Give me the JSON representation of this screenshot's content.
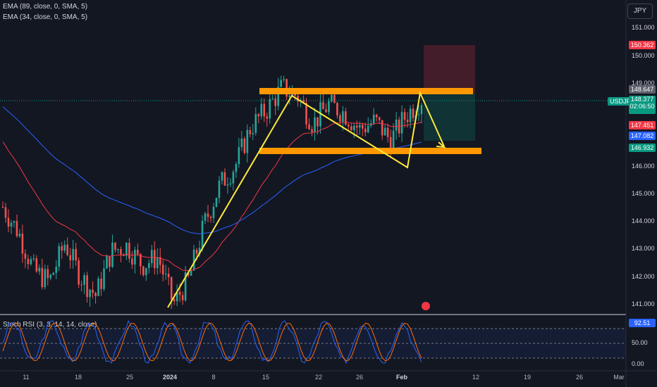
{
  "currency_button": "JPY",
  "indicators": {
    "ema1": "EMA (89, close, 0, SMA, 5)",
    "ema2": "EMA (34, close, 0, SMA, 5)",
    "stoch": "Stoch RSI (3, 3, 14, 14, close)"
  },
  "symbol": "USDJPY",
  "price_axis": [
    "151.000",
    "150.000",
    "149.000",
    "146.000",
    "145.000",
    "144.000",
    "143.000",
    "142.000",
    "141.000"
  ],
  "price_tags": {
    "target": "150.362",
    "level_high": "148.647",
    "current": "148.377",
    "countdown": "02:06:50",
    "p1": "147.451",
    "p2": "147.082",
    "p3": "146.932"
  },
  "rsi_axis": [
    "92.51",
    "50.00",
    "0.00"
  ],
  "time_axis": [
    "11",
    "18",
    "25",
    "2024",
    "8",
    "15",
    "22",
    "26",
    "Feb",
    "12",
    "19",
    "26",
    "Mar"
  ],
  "colors": {
    "up": "#26a69a",
    "down": "#ef5350",
    "ema89": "#2962ff",
    "ema34": "#f23645",
    "zone": "#ff9800",
    "pattern": "#ffeb3b",
    "stoch_k": "#2962ff",
    "stoch_d": "#ff6d00"
  },
  "chart_data": {
    "type": "line",
    "symbol": "USDJPY",
    "series": [
      {
        "name": "price",
        "values": [
          144.5,
          143.6,
          142.2,
          141.8,
          143.2,
          142.0,
          141.3,
          142.9,
          143.1,
          142.4,
          142.7,
          141.0,
          141.9,
          143.9,
          145.3,
          146.0,
          147.4,
          148.0,
          148.8,
          148.5,
          147.5,
          148.2,
          147.9,
          147.3,
          147.6,
          146.9,
          147.8,
          148.4
        ]
      }
    ],
    "ylim": [
      140.7,
      151.3
    ]
  }
}
